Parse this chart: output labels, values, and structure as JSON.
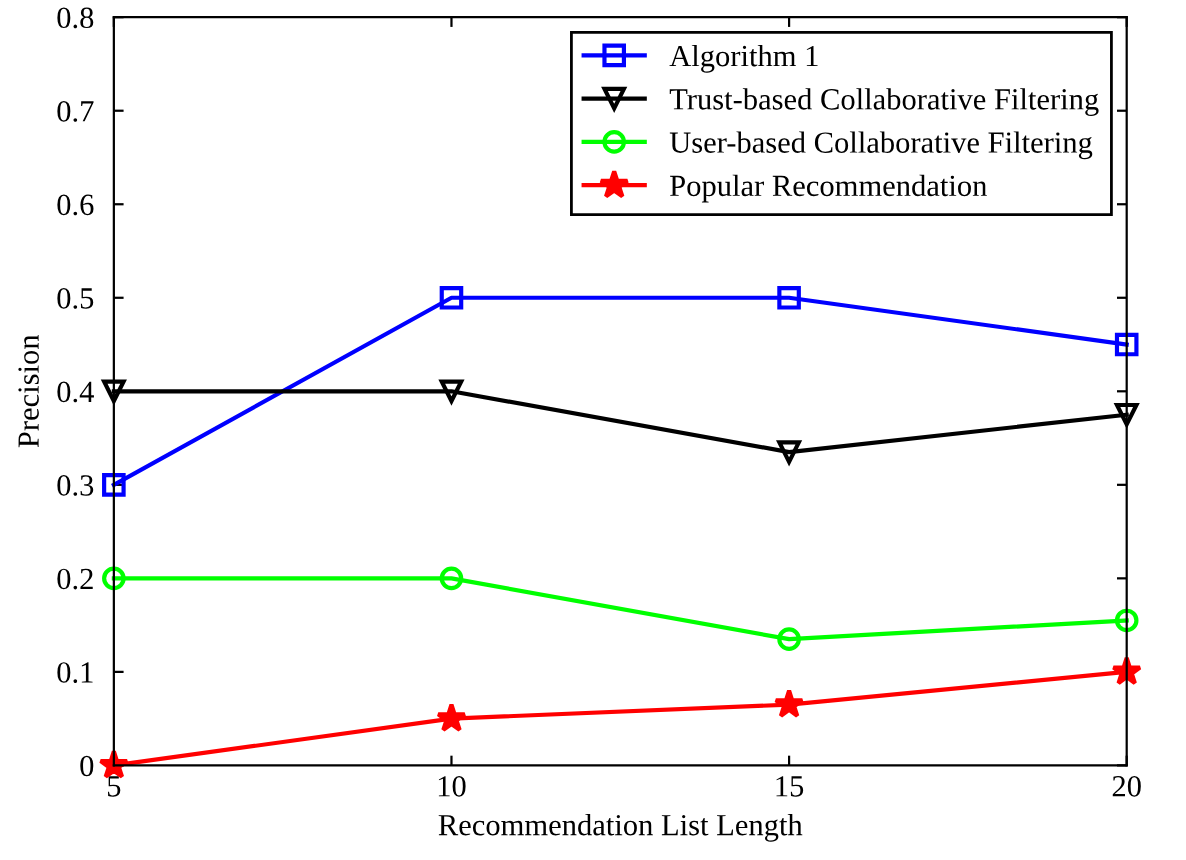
{
  "chart_data": {
    "type": "line",
    "xlabel": "Recommendation List Length",
    "ylabel": "Precision",
    "x": [
      5,
      10,
      15,
      20
    ],
    "series": [
      {
        "name": "Algorithm 1",
        "color": "#0000ff",
        "marker": "square",
        "values": [
          0.3,
          0.5,
          0.5,
          0.45
        ]
      },
      {
        "name": "Trust-based Collaborative Filtering",
        "color": "#000000",
        "marker": "triangle",
        "values": [
          0.4,
          0.4,
          0.335,
          0.375
        ]
      },
      {
        "name": "User-based Collaborative Filtering",
        "color": "#00ff00",
        "marker": "circle",
        "values": [
          0.2,
          0.2,
          0.135,
          0.155
        ]
      },
      {
        "name": "Popular Recommendation",
        "color": "#ff0000",
        "marker": "star",
        "values": [
          0,
          0.05,
          0.065,
          0.1
        ]
      }
    ],
    "xlim": [
      5,
      20
    ],
    "xticks": [
      5,
      10,
      15,
      20
    ],
    "ylim": [
      0,
      0.8
    ],
    "yticks": [
      0,
      0.1,
      0.2,
      0.3,
      0.4,
      0.5,
      0.6,
      0.7,
      0.8
    ],
    "legend": "top right",
    "grid": false,
    "line_style": "solid"
  }
}
